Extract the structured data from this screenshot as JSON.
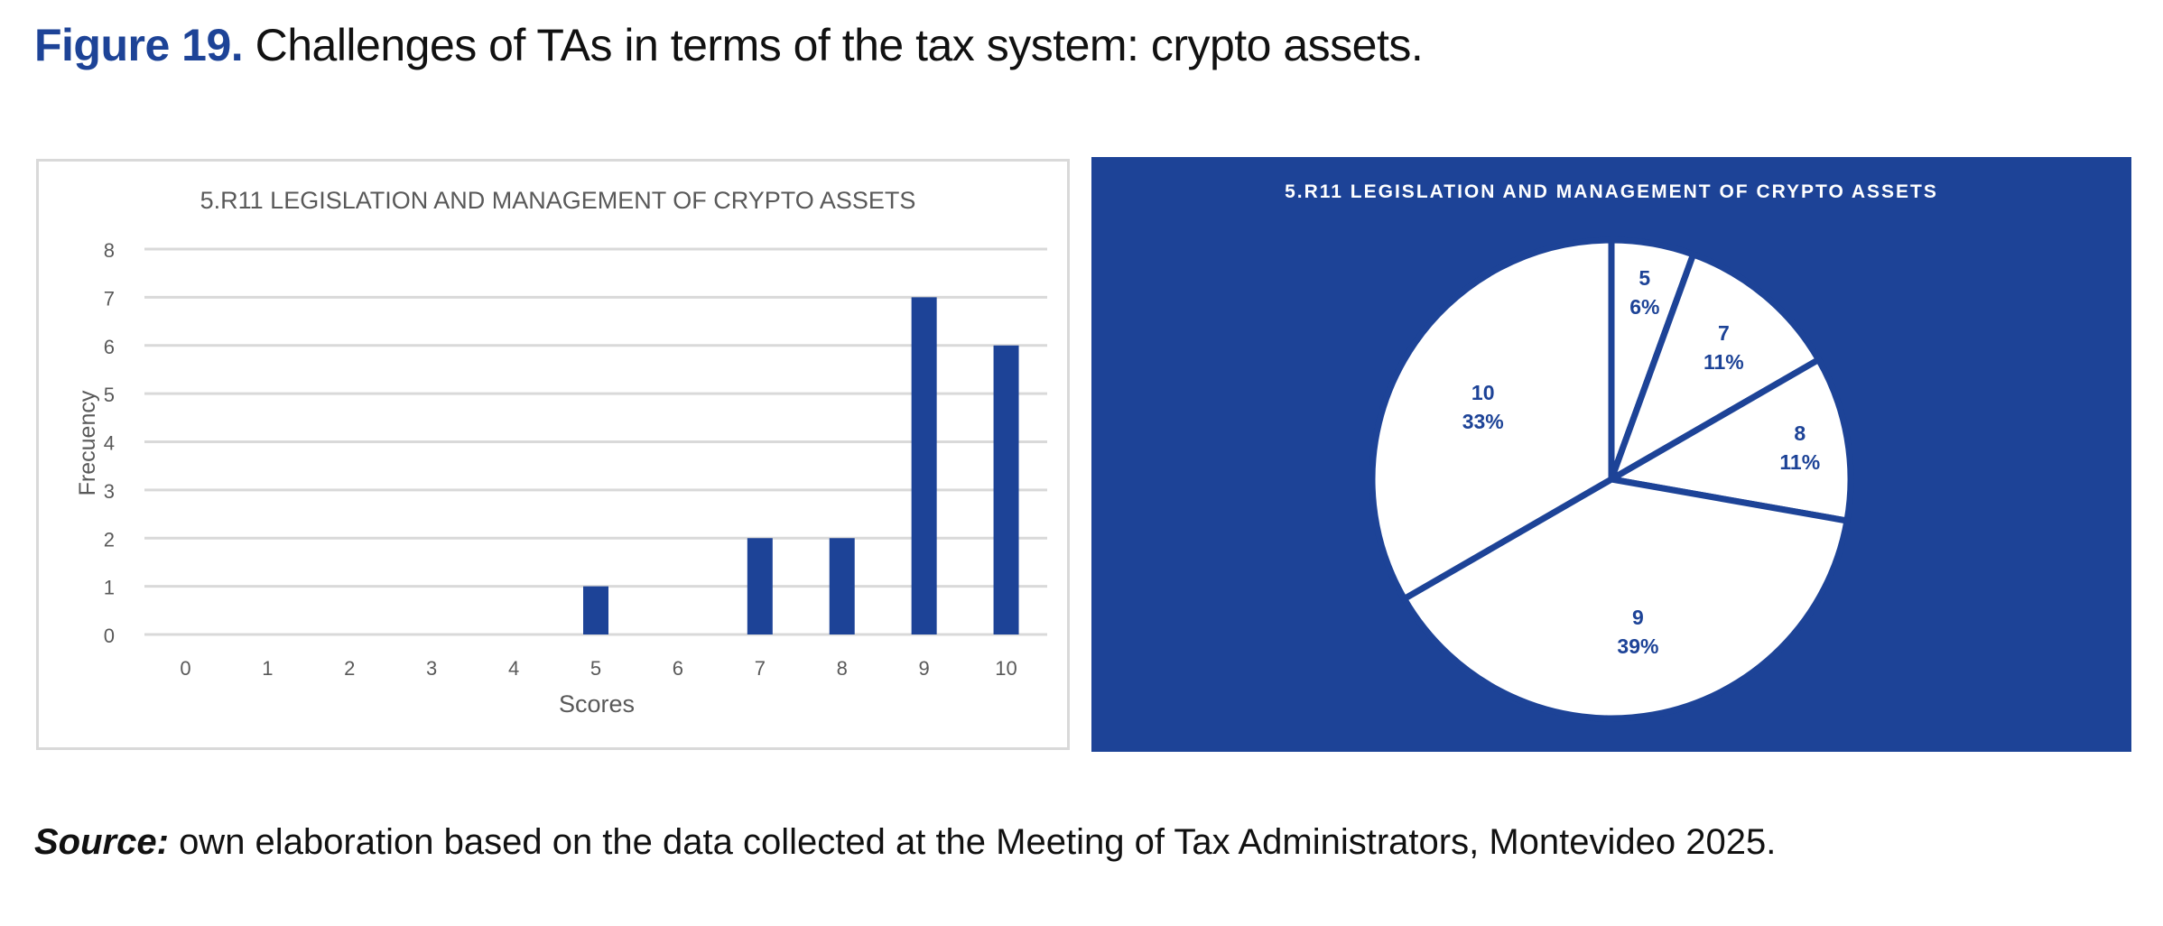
{
  "figure": {
    "number_label": "Figure 19.",
    "title": "Challenges of TAs in terms of the tax system: crypto assets."
  },
  "source": {
    "label": "Source:",
    "text": "own elaboration based on the data collected at the Meeting of Tax Administrators, Montevideo 2025."
  },
  "colors": {
    "accent": "#1d4397",
    "grid": "#d9d9d9",
    "axis_text": "#595959",
    "pie_fill": "#ffffff"
  },
  "chart_data": [
    {
      "type": "bar",
      "title": "5.R11 LEGISLATION AND MANAGEMENT OF CRYPTO ASSETS",
      "xlabel": "Scores",
      "ylabel": "Frecuency",
      "categories": [
        "0",
        "1",
        "2",
        "3",
        "4",
        "5",
        "6",
        "7",
        "8",
        "9",
        "10"
      ],
      "values": [
        0,
        0,
        0,
        0,
        0,
        1,
        0,
        2,
        2,
        7,
        6
      ],
      "ylim": [
        0,
        8
      ],
      "yticks": [
        "0",
        "1",
        "2",
        "3",
        "4",
        "5",
        "6",
        "7",
        "8"
      ],
      "grid": true,
      "legend": "none",
      "color": "#1d4397"
    },
    {
      "type": "pie",
      "title": "5.R11 LEGISLATION AND MANAGEMENT OF CRYPTO ASSETS",
      "slices": [
        {
          "label": "5",
          "percent_label": "6%",
          "value": 1
        },
        {
          "label": "7",
          "percent_label": "11%",
          "value": 2
        },
        {
          "label": "8",
          "percent_label": "11%",
          "value": 2
        },
        {
          "label": "9",
          "percent_label": "39%",
          "value": 7
        },
        {
          "label": "10",
          "percent_label": "33%",
          "value": 6
        }
      ],
      "start_angle": "12 o'clock",
      "direction": "clockwise",
      "legend": "none",
      "background": "#1d4397"
    }
  ]
}
